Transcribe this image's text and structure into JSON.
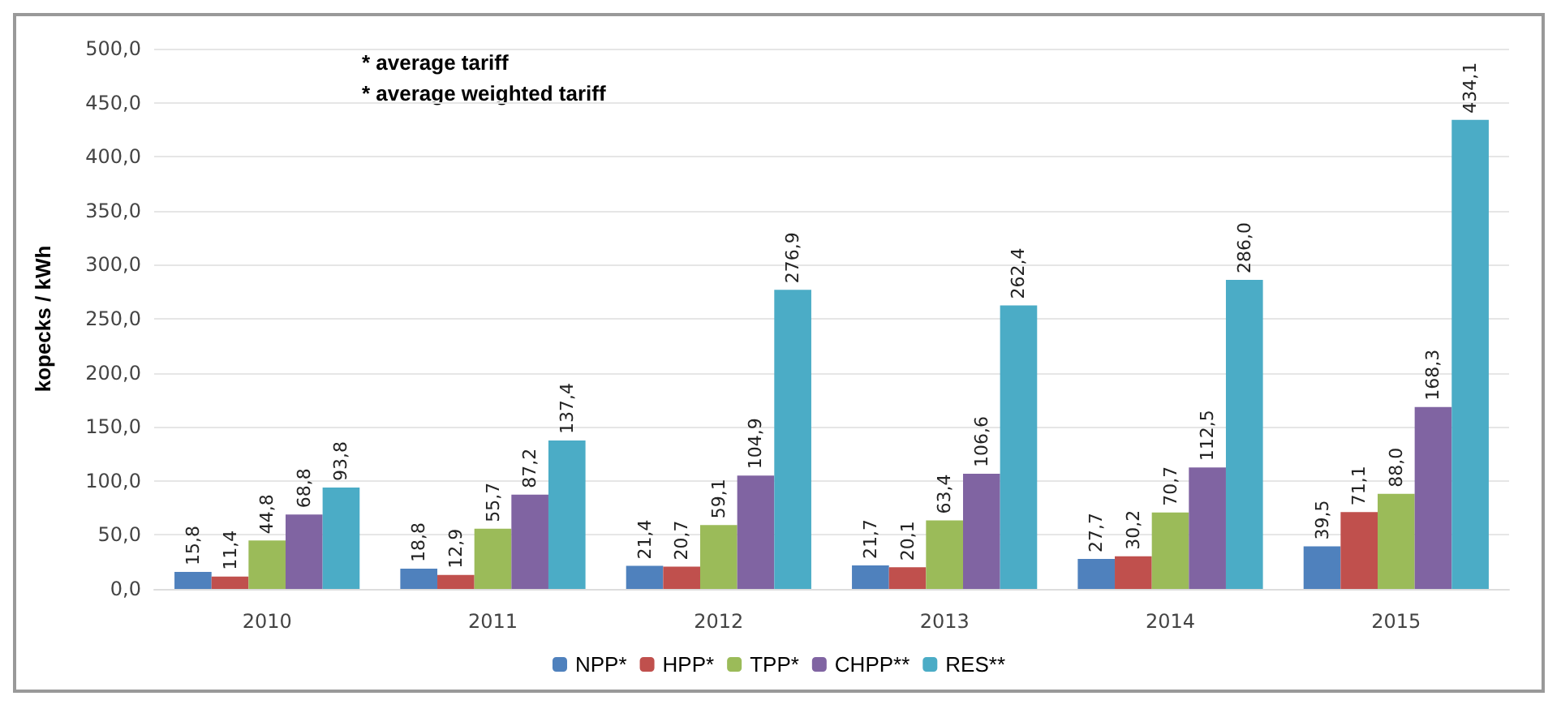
{
  "chart_data": {
    "type": "bar",
    "ylabel": "kopecks / kWh",
    "annotations": [
      "* average tariff",
      "* average weighted tariff"
    ],
    "categories": [
      "2010",
      "2011",
      "2012",
      "2013",
      "2014",
      "2015"
    ],
    "series": [
      {
        "name": "NPP*",
        "color": "#4f81bd",
        "values": [
          15.8,
          18.8,
          21.4,
          21.7,
          27.7,
          39.5
        ],
        "value_labels": [
          "15,8",
          "18,8",
          "21,4",
          "21,7",
          "27,7",
          "39,5"
        ]
      },
      {
        "name": "HPP*",
        "color": "#c0504d",
        "values": [
          11.4,
          12.9,
          20.7,
          20.1,
          30.2,
          71.1
        ],
        "value_labels": [
          "11,4",
          "12,9",
          "20,7",
          "20,1",
          "30,2",
          "71,1"
        ]
      },
      {
        "name": "TPP*",
        "color": "#9bbb59",
        "values": [
          44.8,
          55.7,
          59.1,
          63.4,
          70.7,
          88.0
        ],
        "value_labels": [
          "44,8",
          "55,7",
          "59,1",
          "63,4",
          "70,7",
          "88,0"
        ]
      },
      {
        "name": "CHPP**",
        "color": "#8064a2",
        "values": [
          68.8,
          87.2,
          104.9,
          106.6,
          112.5,
          168.3
        ],
        "value_labels": [
          "68,8",
          "87,2",
          "104,9",
          "106,6",
          "112,5",
          "168,3"
        ]
      },
      {
        "name": "RES**",
        "color": "#4bacc6",
        "values": [
          93.8,
          137.4,
          276.9,
          262.4,
          286.0,
          434.1
        ],
        "value_labels": [
          "93,8",
          "137,4",
          "276,9",
          "262,4",
          "286,0",
          "434,1"
        ]
      }
    ],
    "ylim": [
      0,
      500
    ],
    "yticks": [
      {
        "value": 0,
        "label": "0,0"
      },
      {
        "value": 50,
        "label": "50,0"
      },
      {
        "value": 100,
        "label": "100,0"
      },
      {
        "value": 150,
        "label": "150,0"
      },
      {
        "value": 200,
        "label": "200,0"
      },
      {
        "value": 250,
        "label": "250,0"
      },
      {
        "value": 300,
        "label": "300,0"
      },
      {
        "value": 350,
        "label": "350,0"
      },
      {
        "value": 400,
        "label": "400,0"
      },
      {
        "value": 450,
        "label": "450,0"
      },
      {
        "value": 500,
        "label": "500,0"
      }
    ],
    "grid": "y",
    "legend": "bottom"
  }
}
